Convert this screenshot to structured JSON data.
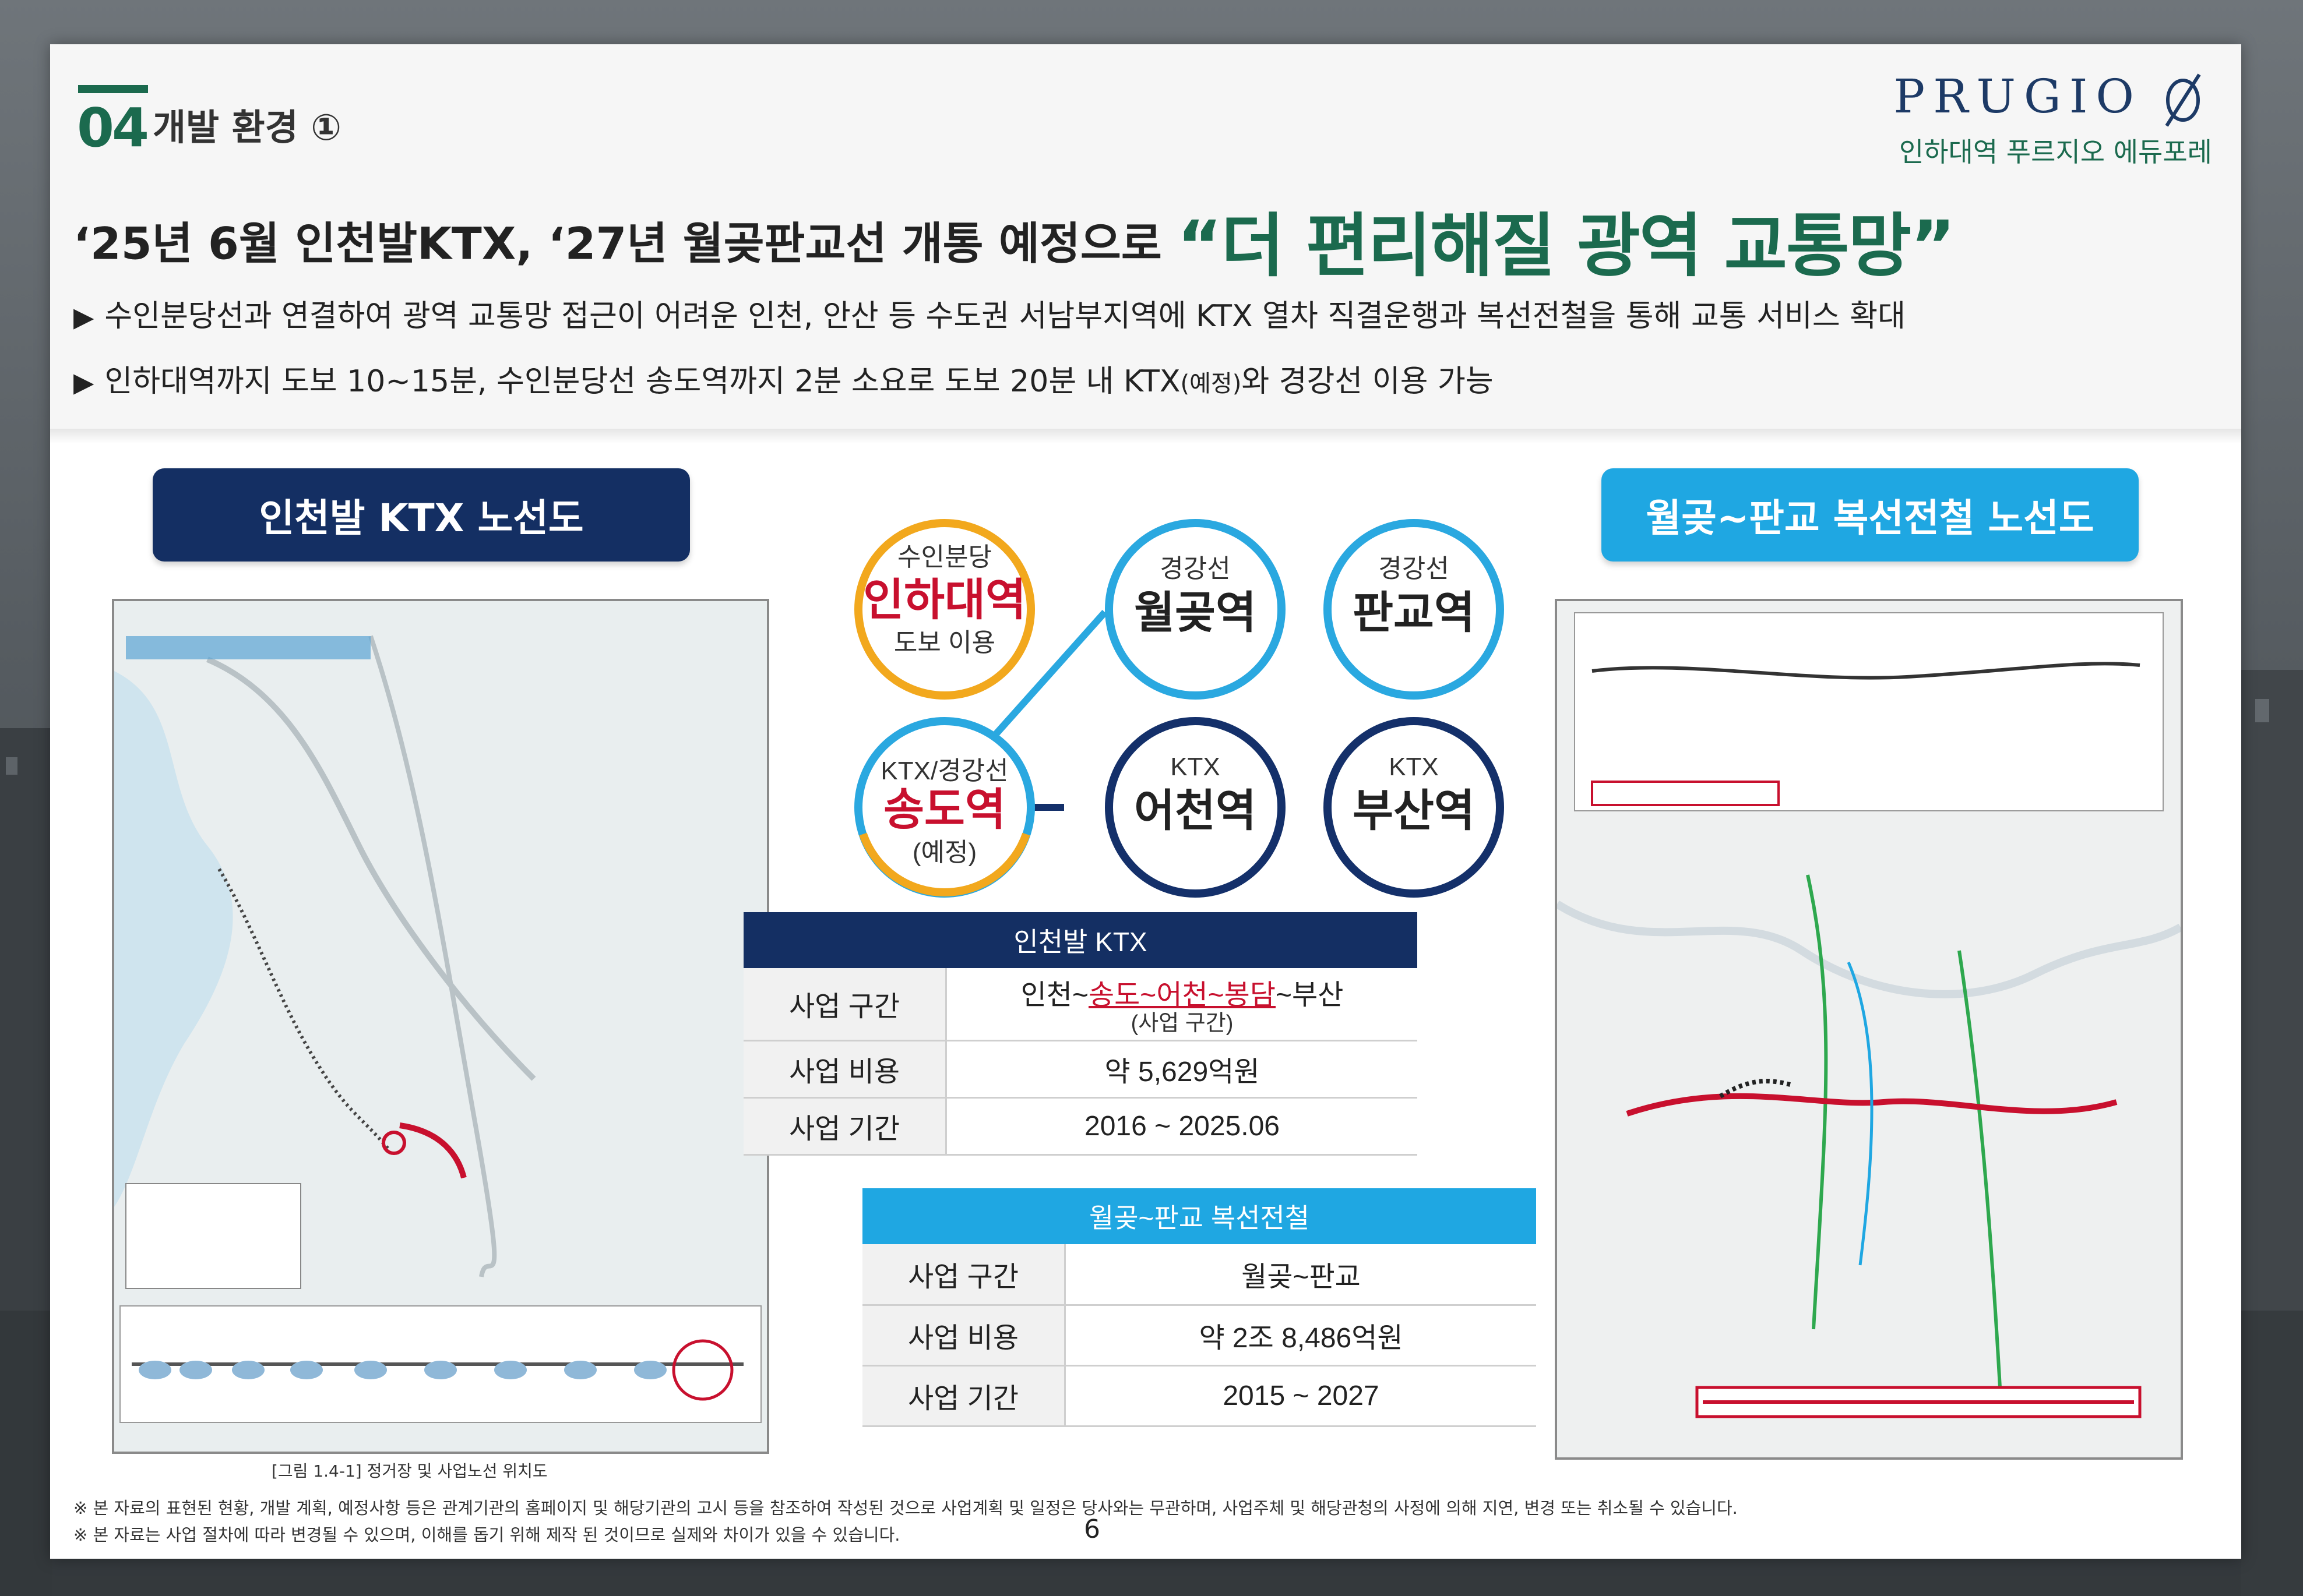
{
  "section": {
    "number": "04",
    "title": "개발 환경 ①"
  },
  "brand": {
    "name": "PRUGIO",
    "mark_icon": "prugio-slashed-o-logo",
    "subtitle": "인하대역 푸르지오 에듀포레"
  },
  "headline": {
    "lead": "‘25년 6월 인천발KTX, ‘27년 월곶판교선 개통 예정으로",
    "emphasis": "“더 편리해질 광역 교통망”"
  },
  "bullets": [
    {
      "text": "수인분당선과 연결하여 광역 교통망 접근이 어려운 인천, 안산 등 수도권 서남부지역에 KTX 열차 직결운행과 복선전철을 통해 교통 서비스 확대"
    },
    {
      "text_a": "인하대역까지 도보 10~15분, 수인분당선 송도역까지 2분 소요로 도보 20분 내 KTX",
      "text_small": "(예정)",
      "text_b": "와 경강선 이용 가능"
    }
  ],
  "left_map": {
    "pill": "인천발 KTX 노선도",
    "caption": "[그림 1.4-1] 정거장 및 사업노선 위치도"
  },
  "right_map": {
    "pill": "월곶~판교 복선전철 노선도"
  },
  "stations": [
    {
      "line": "수인분당",
      "name": "인하대역",
      "sub": "도보 이용",
      "color": "#f2a81d"
    },
    {
      "line": "경강선",
      "name": "월곶역",
      "color": "#2aa8e0"
    },
    {
      "line": "경강선",
      "name": "판교역",
      "color": "#2aa8e0"
    },
    {
      "line": "KTX/경강선",
      "name": "송도역",
      "sub": "(예정)",
      "color": "#2aa8e0"
    },
    {
      "line": "KTX",
      "name": "어천역",
      "color": "#14306a"
    },
    {
      "line": "KTX",
      "name": "부산역",
      "color": "#14306a"
    }
  ],
  "colors": {
    "green": "#1b6a4e",
    "navy": "#142f63",
    "sky": "#1fa7e2",
    "orange": "#f2a81d",
    "red": "#c8102e"
  },
  "table_ktx": {
    "title": "인천발 KTX",
    "rows": [
      {
        "key": "사업 구간",
        "value_pre": "인천~",
        "value_red": "송도~어천~봉담",
        "value_post": "~부산",
        "value_sub": "(사업 구간)"
      },
      {
        "key": "사업 비용",
        "value": "약 5,629억원"
      },
      {
        "key": "사업 기간",
        "value": "2016 ~ 2025.06"
      }
    ]
  },
  "table_wolgot": {
    "title": "월곶~판교 복선전철",
    "rows": [
      {
        "key": "사업 구간",
        "value": "월곶~판교"
      },
      {
        "key": "사업 비용",
        "value": "약 2조 8,486억원"
      },
      {
        "key": "사업 기간",
        "value": "2015 ~ 2027"
      }
    ]
  },
  "footnotes": [
    "※ 본 자료의 표현된 현황, 개발 계획, 예정사항 등은 관계기관의 홈페이지 및 해당기관의 고시 등을 참조하여 작성된 것으로 사업계획 및 일정은 당사와는 무관하며, 사업주체 및 해당관청의 사정에 의해 지연, 변경 또는 취소될 수 있습니다.",
    "※ 본 자료는 사업 절차에 따라 변경될 수 있으며, 이해를 돕기 위해 제작 된 것이므로 실제와 차이가 있을 수 있습니다."
  ],
  "page_number": "6"
}
